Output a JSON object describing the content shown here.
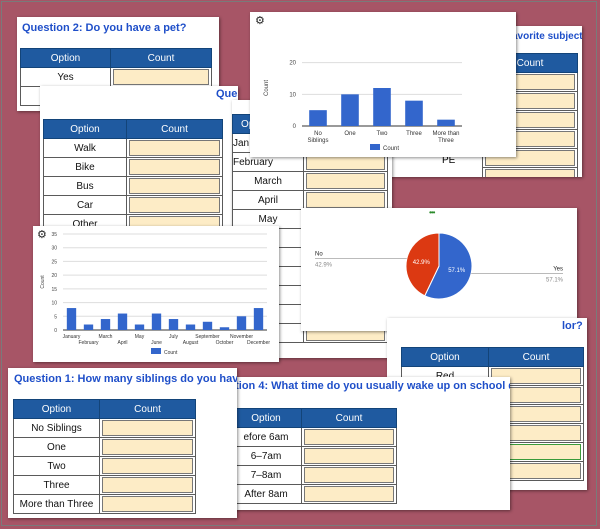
{
  "pet_card": {
    "question": "Question 2: Do you have a pet?",
    "header": [
      "Option",
      "Count"
    ],
    "options": [
      "Yes",
      "No"
    ]
  },
  "subject_card": {
    "question": "avorite subject?",
    "header": [
      "Count"
    ],
    "options": [
      "PE"
    ]
  },
  "transport_card": {
    "question_fragment": "Questio",
    "header": [
      "Option",
      "Count"
    ],
    "options": [
      "Walk",
      "Bike",
      "Bus",
      "Car",
      "Other"
    ]
  },
  "month_card": {
    "header_fragment": "Op",
    "options": [
      "Jan",
      "February",
      "March",
      "April",
      "May",
      "",
      "",
      "",
      "",
      "",
      ""
    ]
  },
  "color_card": {
    "question_fragment": "lor?",
    "header": [
      "Option",
      "Count"
    ],
    "options": [
      "Red",
      "",
      "",
      "",
      "",
      ""
    ]
  },
  "siblings_card": {
    "question": "Question 1: How many siblings do you have?",
    "header": [
      "Option",
      "Count"
    ],
    "options": [
      "No Siblings",
      "One",
      "Two",
      "Three",
      "More than Three"
    ]
  },
  "wake_card": {
    "question": "stion 4: What time do you usually wake up on school days?",
    "header": [
      "Option",
      "Count"
    ],
    "options": [
      "efore 6am",
      "6–7am",
      "7–8am",
      "After 8am"
    ]
  },
  "icons": {
    "gear": "⚙",
    "dots": "•••"
  },
  "siblings_chart": {
    "chart_data": {
      "type": "bar",
      "categories": [
        "No Siblings",
        "One",
        "Two",
        "Three",
        "More than Three"
      ],
      "category_lines": [
        [
          "No",
          "Siblings"
        ],
        [
          "One"
        ],
        [
          "Two"
        ],
        [
          "Three"
        ],
        [
          "More than",
          "Three"
        ]
      ],
      "values": [
        5,
        10,
        12,
        8,
        2
      ],
      "ylabel": "Count",
      "yticks": [
        0,
        10,
        20
      ],
      "ylim": [
        0,
        24
      ],
      "legend": "Count",
      "legend_position": "bottom",
      "color": "#3366cc",
      "grid": true
    }
  },
  "months_chart": {
    "chart_data": {
      "type": "bar",
      "categories": [
        "January",
        "February",
        "March",
        "April",
        "May",
        "June",
        "July",
        "August",
        "September",
        "October",
        "November",
        "December"
      ],
      "values": [
        8,
        2,
        4,
        6,
        2,
        6,
        4,
        2,
        3,
        1,
        5,
        8
      ],
      "ylabel": "Count",
      "yticks": [
        0,
        5,
        10,
        15,
        20,
        25,
        30,
        35
      ],
      "ylim": [
        0,
        35
      ],
      "legend": "Count",
      "legend_position": "bottom",
      "color": "#3366cc",
      "grid": true
    }
  },
  "pet_chart": {
    "chart_data": {
      "type": "pie",
      "slices": [
        {
          "label": "Yes",
          "value": 57.1,
          "display": "57.1%",
          "color": "#3366cc"
        },
        {
          "label": "No",
          "value": 42.9,
          "display": "42.9%",
          "color": "#dc3912"
        }
      ]
    }
  }
}
